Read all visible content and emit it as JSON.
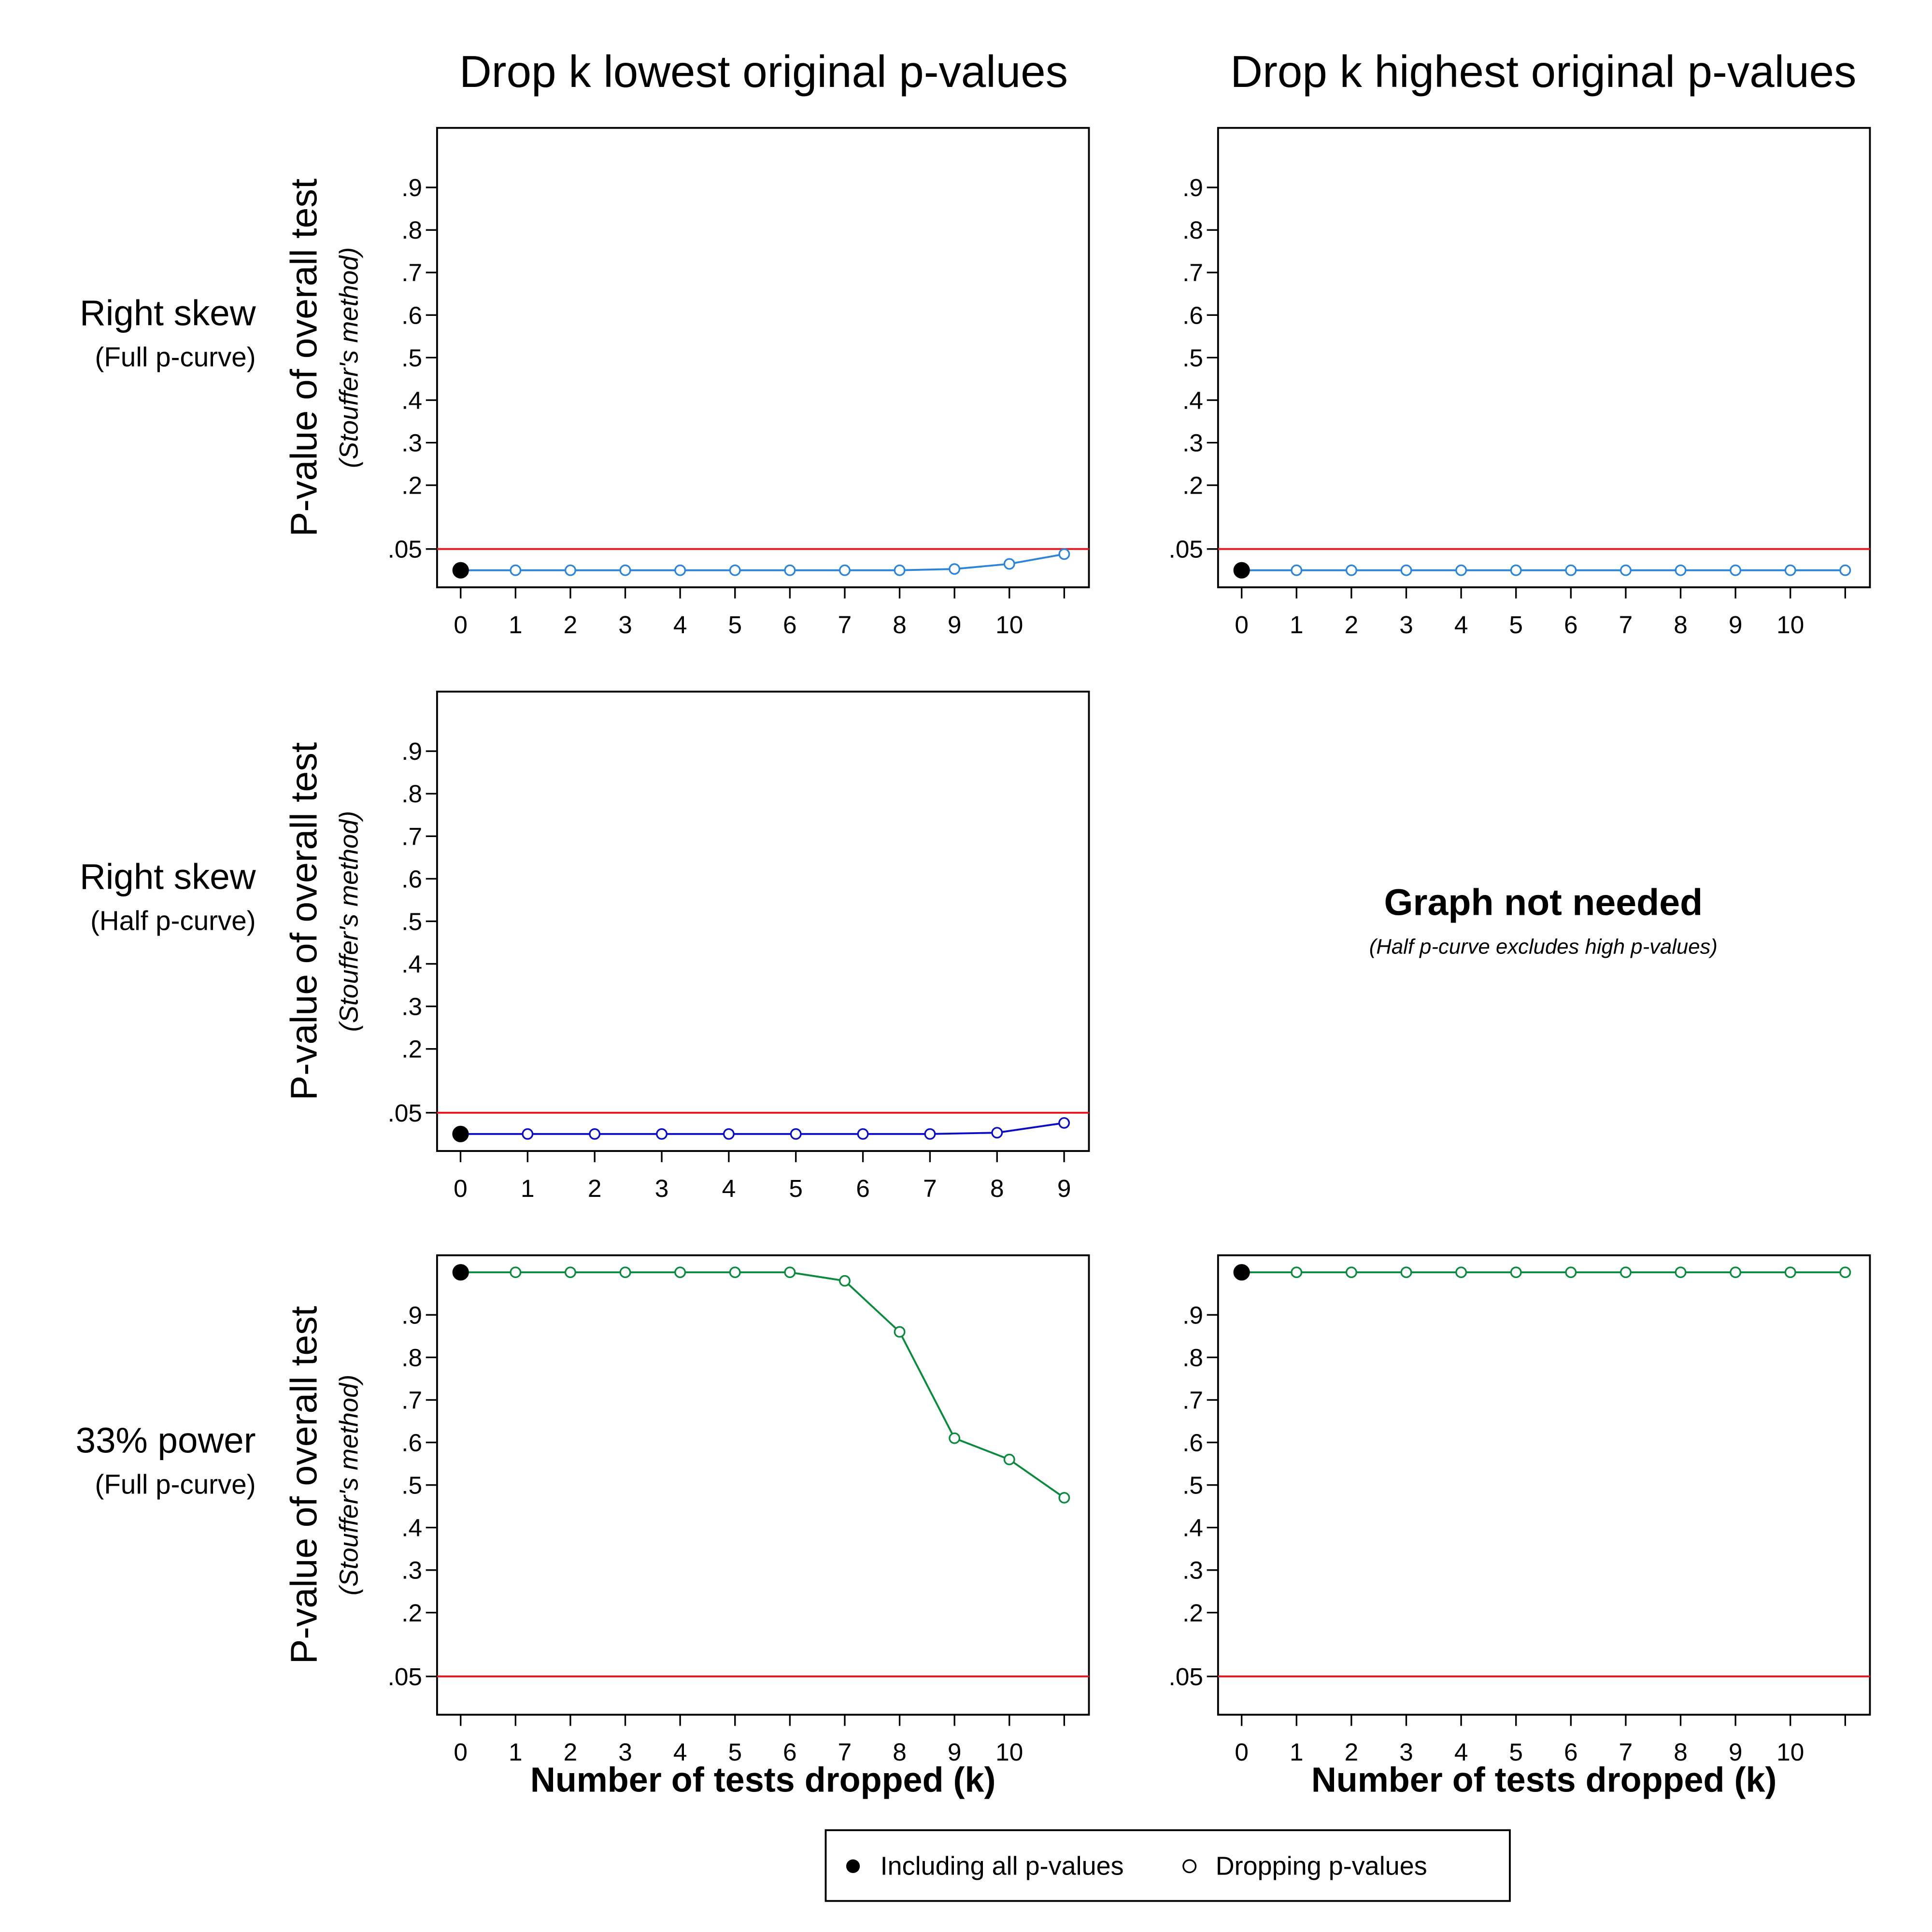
{
  "column_titles": [
    "Drop k lowest original p-values",
    "Drop k highest original p-values"
  ],
  "row_labels": [
    {
      "title": "Right skew",
      "subtitle": "(Full p-curve)",
      "color": "#2b84dc"
    },
    {
      "title": "Right skew",
      "subtitle": "(Half p-curve)",
      "color": "#0b0bc4"
    },
    {
      "title": "33% power",
      "subtitle": "(Full p-curve)",
      "color": "#0b8a3e"
    }
  ],
  "note": {
    "title": "Graph not needed",
    "subtitle": "(Half p-curve excludes high p-values)"
  },
  "legend": [
    "Including all p-values",
    "Dropping p-values"
  ],
  "chart_data": [
    {
      "type": "line",
      "ylabel": "P-value of overall test",
      "ylabel_sub": "(Stouffer's method)",
      "x": [
        0,
        1,
        2,
        3,
        4,
        5,
        6,
        7,
        8,
        9,
        10,
        11
      ],
      "series": [
        {
          "color": "#2b84dc",
          "values": [
            0,
            0,
            0,
            0,
            0,
            0,
            0,
            0,
            0,
            0.003,
            0.015,
            0.038
          ]
        }
      ],
      "xlim": [
        -0.43,
        11.45
      ],
      "ylim": [
        -0.04,
        1.04
      ],
      "xticks": [
        0,
        1,
        2,
        3,
        4,
        5,
        6,
        7,
        8,
        9,
        10,
        {
          "value": 11,
          "label": null
        }
      ],
      "yticks": [
        {
          "value": 0.05,
          "label": ".05"
        },
        {
          "value": 0.2,
          "label": ".2"
        },
        {
          "value": 0.3,
          "label": ".3"
        },
        {
          "value": 0.4,
          "label": ".4"
        },
        {
          "value": 0.5,
          "label": ".5"
        },
        {
          "value": 0.6,
          "label": ".6"
        },
        {
          "value": 0.7,
          "label": ".7"
        },
        {
          "value": 0.8,
          "label": ".8"
        },
        {
          "value": 0.9,
          "label": ".9"
        }
      ],
      "hline": {
        "value": 0.05,
        "color": "#e8141c"
      }
    },
    {
      "type": "line",
      "x": [
        0,
        1,
        2,
        3,
        4,
        5,
        6,
        7,
        8,
        9,
        10,
        11
      ],
      "series": [
        {
          "color": "#2b84dc",
          "values": [
            0,
            0,
            0,
            0,
            0,
            0,
            0,
            0,
            0,
            0,
            0,
            0
          ]
        }
      ],
      "xlim": [
        -0.43,
        11.45
      ],
      "ylim": [
        -0.04,
        1.04
      ],
      "xticks": [
        0,
        1,
        2,
        3,
        4,
        5,
        6,
        7,
        8,
        9,
        10,
        {
          "value": 11,
          "label": null
        }
      ],
      "yticks": [
        {
          "value": 0.05,
          "label": ".05"
        },
        {
          "value": 0.2,
          "label": ".2"
        },
        {
          "value": 0.3,
          "label": ".3"
        },
        {
          "value": 0.4,
          "label": ".4"
        },
        {
          "value": 0.5,
          "label": ".5"
        },
        {
          "value": 0.6,
          "label": ".6"
        },
        {
          "value": 0.7,
          "label": ".7"
        },
        {
          "value": 0.8,
          "label": ".8"
        },
        {
          "value": 0.9,
          "label": ".9"
        }
      ],
      "hline": {
        "value": 0.05,
        "color": "#e8141c"
      }
    },
    {
      "type": "line",
      "ylabel": "P-value of overall test",
      "ylabel_sub": "(Stouffer's method)",
      "x": [
        0,
        1,
        2,
        3,
        4,
        5,
        6,
        7,
        8,
        9
      ],
      "series": [
        {
          "color": "#0b0bc4",
          "values": [
            0,
            0,
            0,
            0,
            0,
            0,
            0,
            0,
            0.003,
            0.026
          ]
        }
      ],
      "xlim": [
        -0.35,
        9.37
      ],
      "ylim": [
        -0.04,
        1.04
      ],
      "xticks": [
        0,
        1,
        2,
        3,
        4,
        5,
        6,
        7,
        8,
        9
      ],
      "yticks": [
        {
          "value": 0.05,
          "label": ".05"
        },
        {
          "value": 0.2,
          "label": ".2"
        },
        {
          "value": 0.3,
          "label": ".3"
        },
        {
          "value": 0.4,
          "label": ".4"
        },
        {
          "value": 0.5,
          "label": ".5"
        },
        {
          "value": 0.6,
          "label": ".6"
        },
        {
          "value": 0.7,
          "label": ".7"
        },
        {
          "value": 0.8,
          "label": ".8"
        },
        {
          "value": 0.9,
          "label": ".9"
        }
      ],
      "hline": {
        "value": 0.05,
        "color": "#e8141c"
      }
    },
    {
      "type": "line",
      "ylabel": "P-value of overall test",
      "ylabel_sub": "(Stouffer's method)",
      "xlabel": "Number of tests dropped (k)",
      "x": [
        0,
        1,
        2,
        3,
        4,
        5,
        6,
        7,
        8,
        9,
        10,
        11
      ],
      "series": [
        {
          "color": "#0b8a3e",
          "values": [
            1,
            1,
            1,
            1,
            1,
            1,
            1,
            0.98,
            0.86,
            0.61,
            0.56,
            0.47
          ]
        }
      ],
      "xlim": [
        -0.43,
        11.45
      ],
      "ylim": [
        -0.04,
        1.04
      ],
      "xticks": [
        0,
        1,
        2,
        3,
        4,
        5,
        6,
        7,
        8,
        9,
        10,
        {
          "value": 11,
          "label": null
        }
      ],
      "yticks": [
        {
          "value": 0.05,
          "label": ".05"
        },
        {
          "value": 0.2,
          "label": ".2"
        },
        {
          "value": 0.3,
          "label": ".3"
        },
        {
          "value": 0.4,
          "label": ".4"
        },
        {
          "value": 0.5,
          "label": ".5"
        },
        {
          "value": 0.6,
          "label": ".6"
        },
        {
          "value": 0.7,
          "label": ".7"
        },
        {
          "value": 0.8,
          "label": ".8"
        },
        {
          "value": 0.9,
          "label": ".9"
        }
      ],
      "hline": {
        "value": 0.05,
        "color": "#e8141c"
      }
    },
    {
      "type": "line",
      "xlabel": "Number of tests dropped (k)",
      "x": [
        0,
        1,
        2,
        3,
        4,
        5,
        6,
        7,
        8,
        9,
        10,
        11
      ],
      "series": [
        {
          "color": "#0b8a3e",
          "values": [
            1,
            1,
            1,
            1,
            1,
            1,
            1,
            1,
            1,
            1,
            1,
            1
          ]
        }
      ],
      "xlim": [
        -0.43,
        11.45
      ],
      "ylim": [
        -0.04,
        1.04
      ],
      "xticks": [
        0,
        1,
        2,
        3,
        4,
        5,
        6,
        7,
        8,
        9,
        10,
        {
          "value": 11,
          "label": null
        }
      ],
      "yticks": [
        {
          "value": 0.05,
          "label": ".05"
        },
        {
          "value": 0.2,
          "label": ".2"
        },
        {
          "value": 0.3,
          "label": ".3"
        },
        {
          "value": 0.4,
          "label": ".4"
        },
        {
          "value": 0.5,
          "label": ".5"
        },
        {
          "value": 0.6,
          "label": ".6"
        },
        {
          "value": 0.7,
          "label": ".7"
        },
        {
          "value": 0.8,
          "label": ".8"
        },
        {
          "value": 0.9,
          "label": ".9"
        }
      ],
      "hline": {
        "value": 0.05,
        "color": "#e8141c"
      }
    }
  ]
}
